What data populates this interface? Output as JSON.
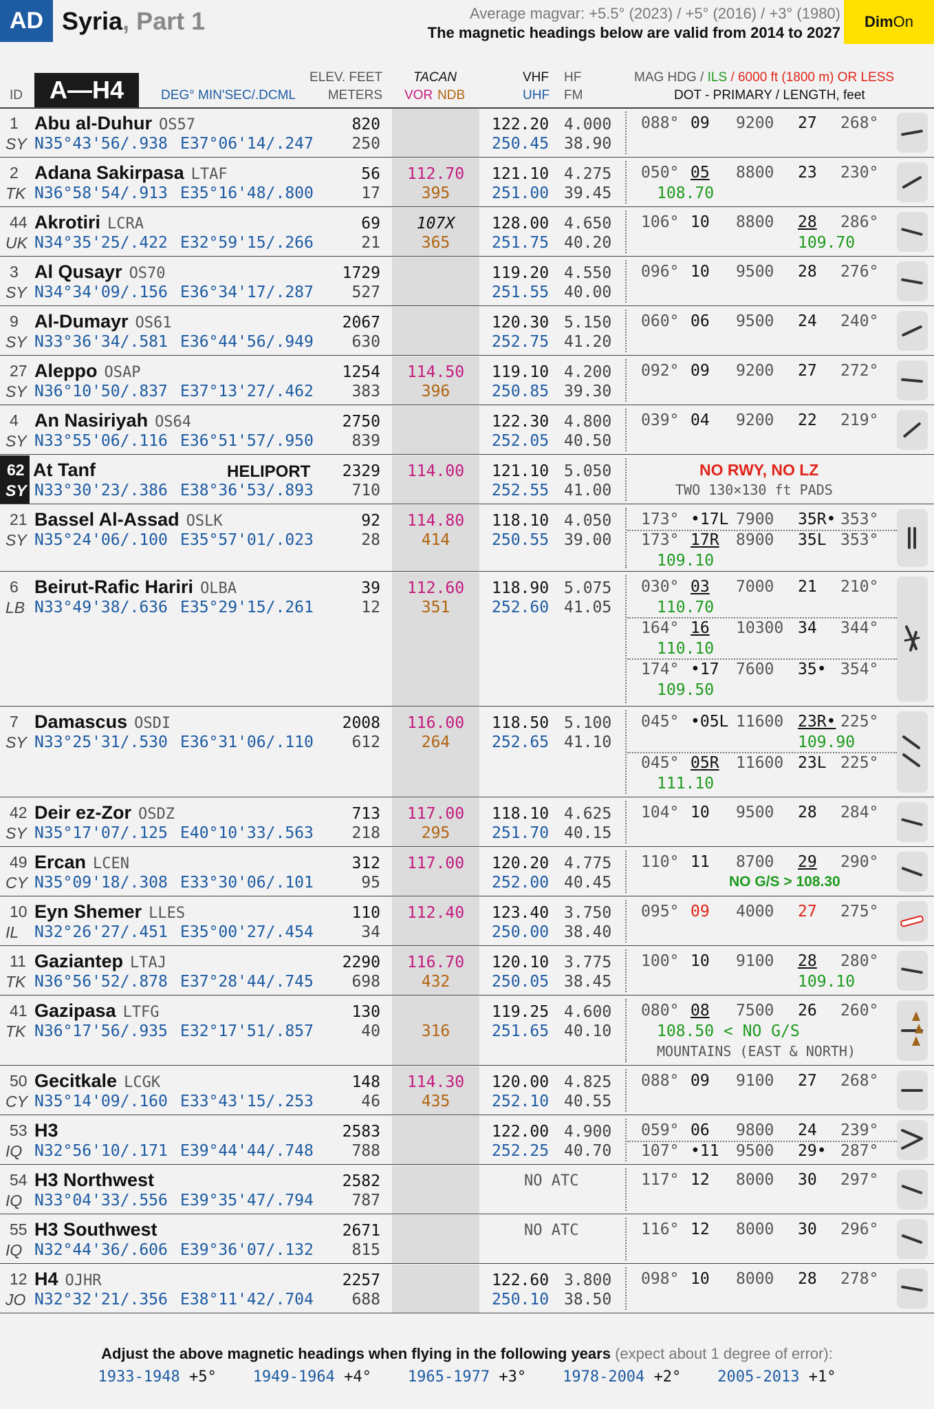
{
  "header": {
    "badge": "AD",
    "title_country": "Syria",
    "title_part": ", Part 1",
    "magvar_line": "Average magvar: +5.5° (2023) / +5° (2016) /  +3° (1980)",
    "valid_line": "The magnetic headings below are valid from 2014 to 2027",
    "dim": "Dim",
    "on": "On"
  },
  "columns": {
    "id": "ID",
    "range_tab": "A—H4",
    "coord_fmt": "DEG° MIN'SEC/.DCML",
    "elev_title": "ELEV. FEET",
    "elev_sub": "METERS",
    "tacan": "TACAN",
    "vor": "VOR",
    "ndb": "NDB",
    "vhf": "VHF",
    "uhf": "UHF",
    "hf": "HF",
    "fm": "FM",
    "mag_hdg": "MAG HDG /",
    "ils": "ILS",
    "ft_less": "/ 6000 ft (1800 m) OR LESS",
    "dot_line": "DOT - PRIMARY / LENGTH, feet"
  },
  "airports": [
    {
      "id": "1",
      "cty": "SY",
      "name": "Abu al-Duhur",
      "icao": "OS57",
      "lat": "N35°43'56/.938",
      "lon": "E37°06'14/.247",
      "ft": "820",
      "m": "250",
      "tac": "",
      "ndb": "",
      "vhf": "122.20",
      "hf": "4.000",
      "uhf": "250.45",
      "fm": "38.90"
    },
    {
      "id": "2",
      "cty": "TK",
      "name": "Adana Sakirpasa",
      "icao": "LTAF",
      "lat": "N36°58'54/.913",
      "lon": "E35°16'48/.800",
      "ft": "56",
      "m": "17",
      "tac": "112.70",
      "ndb": "395",
      "vhf": "121.10",
      "hf": "4.275",
      "uhf": "251.00",
      "fm": "39.45"
    },
    {
      "id": "44",
      "cty": "UK",
      "name": "Akrotiri",
      "icao": "LCRA",
      "lat": "N34°35'25/.422",
      "lon": "E32°59'15/.266",
      "ft": "69",
      "m": "21",
      "tac": "107X",
      "ndb": "365",
      "vhf": "128.00",
      "hf": "4.650",
      "uhf": "251.75",
      "fm": "40.20"
    },
    {
      "id": "3",
      "cty": "SY",
      "name": "Al Qusayr",
      "icao": "OS70",
      "lat": "N34°34'09/.156",
      "lon": "E36°34'17/.287",
      "ft": "1729",
      "m": "527",
      "tac": "",
      "ndb": "",
      "vhf": "119.20",
      "hf": "4.550",
      "uhf": "251.55",
      "fm": "40.00"
    },
    {
      "id": "9",
      "cty": "SY",
      "name": "Al-Dumayr",
      "icao": "OS61",
      "lat": "N33°36'34/.581",
      "lon": "E36°44'56/.949",
      "ft": "2067",
      "m": "630",
      "tac": "",
      "ndb": "",
      "vhf": "120.30",
      "hf": "5.150",
      "uhf": "252.75",
      "fm": "41.20"
    },
    {
      "id": "27",
      "cty": "SY",
      "name": "Aleppo",
      "icao": "OSAP",
      "lat": "N36°10'50/.837",
      "lon": "E37°13'27/.462",
      "ft": "1254",
      "m": "383",
      "tac": "114.50",
      "ndb": "396",
      "vhf": "119.10",
      "hf": "4.200",
      "uhf": "250.85",
      "fm": "39.30"
    },
    {
      "id": "4",
      "cty": "SY",
      "name": "An Nasiriyah",
      "icao": "OS64",
      "lat": "N33°55'06/.116",
      "lon": "E36°51'57/.950",
      "ft": "2750",
      "m": "839",
      "tac": "",
      "ndb": "",
      "vhf": "122.30",
      "hf": "4.800",
      "uhf": "252.05",
      "fm": "40.50"
    },
    {
      "id": "62",
      "cty": "SY",
      "name": "At Tanf",
      "icao": "HELIPORT",
      "lat": "N33°30'23/.386",
      "lon": "E38°36'53/.893",
      "ft": "2329",
      "m": "710",
      "tac": "114.00",
      "ndb": "",
      "vhf": "121.10",
      "hf": "5.050",
      "uhf": "252.55",
      "fm": "41.00",
      "note1": "NO RWY, NO LZ",
      "note2": "TWO 130×130 ft PADS"
    },
    {
      "id": "21",
      "cty": "SY",
      "name": "Bassel Al-Assad",
      "icao": "OSLK",
      "lat": "N35°24'06/.100",
      "lon": "E35°57'01/.023",
      "ft": "92",
      "m": "28",
      "tac": "114.80",
      "ndb": "414",
      "vhf": "118.10",
      "hf": "4.050",
      "uhf": "250.55",
      "fm": "39.00"
    },
    {
      "id": "6",
      "cty": "LB",
      "name": "Beirut-Rafic Hariri",
      "icao": "OLBA",
      "lat": "N33°49'38/.636",
      "lon": "E35°29'15/.261",
      "ft": "39",
      "m": "12",
      "tac": "112.60",
      "ndb": "351",
      "vhf": "118.90",
      "hf": "5.075",
      "uhf": "252.60",
      "fm": "41.05"
    },
    {
      "id": "7",
      "cty": "SY",
      "name": "Damascus",
      "icao": "OSDI",
      "lat": "N33°25'31/.530",
      "lon": "E36°31'06/.110",
      "ft": "2008",
      "m": "612",
      "tac": "116.00",
      "ndb": "264",
      "vhf": "118.50",
      "hf": "5.100",
      "uhf": "252.65",
      "fm": "41.10"
    },
    {
      "id": "42",
      "cty": "SY",
      "name": "Deir ez-Zor",
      "icao": "OSDZ",
      "lat": "N35°17'07/.125",
      "lon": "E40°10'33/.563",
      "ft": "713",
      "m": "218",
      "tac": "117.00",
      "ndb": "295",
      "vhf": "118.10",
      "hf": "4.625",
      "uhf": "251.70",
      "fm": "40.15"
    },
    {
      "id": "49",
      "cty": "CY",
      "name": "Ercan",
      "icao": "LCEN",
      "lat": "N35°09'18/.308",
      "lon": "E33°30'06/.101",
      "ft": "312",
      "m": "95",
      "tac": "117.00",
      "ndb": "",
      "vhf": "120.20",
      "hf": "4.775",
      "uhf": "252.00",
      "fm": "40.45"
    },
    {
      "id": "10",
      "cty": "IL",
      "name": "Eyn Shemer",
      "icao": "LLES",
      "lat": "N32°26'27/.451",
      "lon": "E35°00'27/.454",
      "ft": "110",
      "m": "34",
      "tac": "112.40",
      "ndb": "",
      "vhf": "123.40",
      "hf": "3.750",
      "uhf": "250.00",
      "fm": "38.40"
    },
    {
      "id": "11",
      "cty": "TK",
      "name": "Gaziantep",
      "icao": "LTAJ",
      "lat": "N36°56'52/.878",
      "lon": "E37°28'44/.745",
      "ft": "2290",
      "m": "698",
      "tac": "116.70",
      "ndb": "432",
      "vhf": "120.10",
      "hf": "3.775",
      "uhf": "250.05",
      "fm": "38.45"
    },
    {
      "id": "41",
      "cty": "TK",
      "name": "Gazipasa",
      "icao": "LTFG",
      "lat": "N36°17'56/.935",
      "lon": "E32°17'51/.857",
      "ft": "130",
      "m": "40",
      "tac": "",
      "ndb": "316",
      "vhf": "119.25",
      "hf": "4.600",
      "uhf": "251.65",
      "fm": "40.10"
    },
    {
      "id": "50",
      "cty": "CY",
      "name": "Gecitkale",
      "icao": "LCGK",
      "lat": "N35°14'09/.160",
      "lon": "E33°43'15/.253",
      "ft": "148",
      "m": "46",
      "tac": "114.30",
      "ndb": "435",
      "vhf": "120.00",
      "hf": "4.825",
      "uhf": "252.10",
      "fm": "40.55"
    },
    {
      "id": "53",
      "cty": "IQ",
      "name": "H3",
      "icao": "",
      "lat": "N32°56'10/.171",
      "lon": "E39°44'44/.748",
      "ft": "2583",
      "m": "788",
      "tac": "",
      "ndb": "",
      "vhf": "122.00",
      "hf": "4.900",
      "uhf": "252.25",
      "fm": "40.70"
    },
    {
      "id": "54",
      "cty": "IQ",
      "name": "H3 Northwest",
      "icao": "",
      "lat": "N33°04'33/.556",
      "lon": "E39°35'47/.794",
      "ft": "2582",
      "m": "787",
      "tac": "",
      "ndb": "",
      "vhf": "",
      "hf": "",
      "uhf": "",
      "fm": "",
      "atc": "NO ATC"
    },
    {
      "id": "55",
      "cty": "IQ",
      "name": "H3 Southwest",
      "icao": "",
      "lat": "N32°44'36/.606",
      "lon": "E39°36'07/.132",
      "ft": "2671",
      "m": "815",
      "tac": "",
      "ndb": "",
      "vhf": "",
      "hf": "",
      "uhf": "",
      "fm": "",
      "atc": "NO ATC"
    },
    {
      "id": "12",
      "cty": "JO",
      "name": "H4",
      "icao": "OJHR",
      "lat": "N32°32'21/.356",
      "lon": "E38°11'42/.704",
      "ft": "2257",
      "m": "688",
      "tac": "",
      "ndb": "",
      "vhf": "122.60",
      "hf": "3.800",
      "uhf": "250.10",
      "fm": "38.50"
    }
  ],
  "runways": {
    "r0": {
      "h1": "088°",
      "r1": "09",
      "len": "9200",
      "r2": "27",
      "h2": "268°"
    },
    "r1": {
      "h1": "050°",
      "r1": "05",
      "len": "8800",
      "r2": "23",
      "h2": "230°",
      "ils1": "108.70"
    },
    "r2": {
      "h1": "106°",
      "r1": "10",
      "len": "8800",
      "r2": "28",
      "h2": "286°",
      "ils2": "109.70"
    },
    "r3": {
      "h1": "096°",
      "r1": "10",
      "len": "9500",
      "r2": "28",
      "h2": "276°"
    },
    "r4": {
      "h1": "060°",
      "r1": "06",
      "len": "9500",
      "r2": "24",
      "h2": "240°"
    },
    "r5": {
      "h1": "092°",
      "r1": "09",
      "len": "9200",
      "r2": "27",
      "h2": "272°"
    },
    "r6": {
      "h1": "039°",
      "r1": "04",
      "len": "9200",
      "r2": "22",
      "h2": "219°"
    },
    "r8a": {
      "h1": "173°",
      "r1": "•17L",
      "len": "7900",
      "r2": "35R•",
      "h2": "353°"
    },
    "r8b": {
      "h1": "173°",
      "r1": "17R",
      "len": "8900",
      "r2": "35L",
      "h2": "353°",
      "ils1": "109.10"
    },
    "r9a": {
      "h1": "030°",
      "r1": "03",
      "len": "7000",
      "r2": "21",
      "h2": "210°",
      "ils1": "110.70"
    },
    "r9b": {
      "h1": "164°",
      "r1": "16",
      "len": "10300",
      "r2": "34",
      "h2": "344°",
      "ils1": "110.10"
    },
    "r9c": {
      "h1": "174°",
      "r1": "•17",
      "len": "7600",
      "r2": "35•",
      "h2": "354°",
      "ils1": "109.50"
    },
    "r10a": {
      "h1": "045°",
      "r1": "•05L",
      "len": "11600",
      "r2": "23R•",
      "h2": "225°",
      "ils2": "109.90"
    },
    "r10b": {
      "h1": "045°",
      "r1": "05R",
      "len": "11600",
      "r2": "23L",
      "h2": "225°",
      "ils1": "111.10"
    },
    "r11": {
      "h1": "104°",
      "r1": "10",
      "len": "9500",
      "r2": "28",
      "h2": "284°"
    },
    "r12": {
      "h1": "110°",
      "r1": "11",
      "len": "8700",
      "r2": "29",
      "h2": "290°",
      "note": "NO G/S > 108.30"
    },
    "r13": {
      "h1": "095°",
      "r1": "09",
      "len": "4000",
      "r2": "27",
      "h2": "275°"
    },
    "r14": {
      "h1": "100°",
      "r1": "10",
      "len": "9100",
      "r2": "28",
      "h2": "280°",
      "ils2": "109.10"
    },
    "r15": {
      "h1": "080°",
      "r1": "08",
      "len": "7500",
      "r2": "26",
      "h2": "260°",
      "ils1": "108.50 < NO G/S",
      "note": "MOUNTAINS (EAST & NORTH)"
    },
    "r16": {
      "h1": "088°",
      "r1": "09",
      "len": "9100",
      "r2": "27",
      "h2": "268°"
    },
    "r17a": {
      "h1": "059°",
      "r1": "06",
      "len": "9800",
      "r2": "24",
      "h2": "239°"
    },
    "r17b": {
      "h1": "107°",
      "r1": "•11",
      "len": "9500",
      "r2": "29•",
      "h2": "287°"
    },
    "r18": {
      "h1": "117°",
      "r1": "12",
      "len": "8000",
      "r2": "30",
      "h2": "297°"
    },
    "r19": {
      "h1": "116°",
      "r1": "12",
      "len": "8000",
      "r2": "30",
      "h2": "296°"
    },
    "r20": {
      "h1": "098°",
      "r1": "10",
      "len": "8000",
      "r2": "28",
      "h2": "278°"
    }
  },
  "footer": {
    "text": "Adjust the above magnetic headings when flying in the following years",
    "note": "(expect about 1 degree of error):",
    "years": [
      {
        "range": "1933-1948",
        "adj": "+5°"
      },
      {
        "range": "1949-1964",
        "adj": "+4°"
      },
      {
        "range": "1965-1977",
        "adj": "+3°"
      },
      {
        "range": "1978-2004",
        "adj": "+2°"
      },
      {
        "range": "2005-2013",
        "adj": "+1°"
      }
    ]
  },
  "colors": {
    "badge": "#1d5ba3",
    "dim": "#ffe000",
    "tacan": "#c41a7f",
    "ndb": "#b2640f",
    "ils": "#1e9a1e",
    "warn": "#e0251b",
    "coord": "#1d5ba3"
  }
}
